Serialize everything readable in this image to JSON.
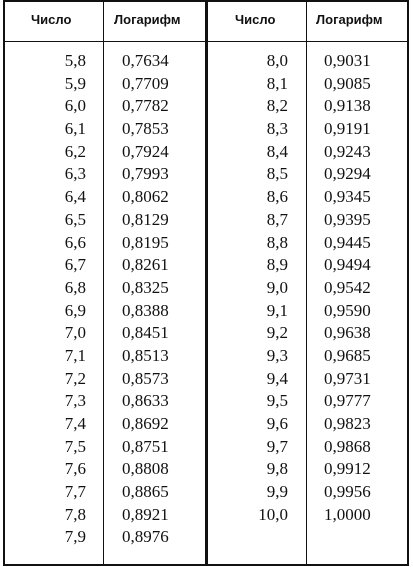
{
  "headers": {
    "number_left": "Число",
    "log_left": "Логарифм",
    "number_right": "Число",
    "log_right": "Логарифм"
  },
  "left_numbers": [
    "5,8",
    "5,9",
    "6,0",
    "6,1",
    "6,2",
    "6,3",
    "6,4",
    "6,5",
    "6,6",
    "6,7",
    "6,8",
    "6,9",
    "7,0",
    "7,1",
    "7,2",
    "7,3",
    "7,4",
    "7,5",
    "7,6",
    "7,7",
    "7,8",
    "7,9"
  ],
  "left_logs": [
    "0,7634",
    "0,7709",
    "0,7782",
    "0,7853",
    "0,7924",
    "0,7993",
    "0,8062",
    "0,8129",
    "0,8195",
    "0,8261",
    "0,8325",
    "0,8388",
    "0,8451",
    "0,8513",
    "0,8573",
    "0,8633",
    "0,8692",
    "0,8751",
    "0,8808",
    "0,8865",
    "0,8921",
    "0,8976"
  ],
  "right_numbers": [
    "8,0",
    "8,1",
    "8,2",
    "8,3",
    "8,4",
    "8,5",
    "8,6",
    "8,7",
    "8,8",
    "8,9",
    "9,0",
    "9,1",
    "9,2",
    "9,3",
    "9,4",
    "9,5",
    "9,6",
    "9,7",
    "9,8",
    "9,9",
    "10,0"
  ],
  "right_logs": [
    "0,9031",
    "0,9085",
    "0,9138",
    "0,9191",
    "0,9243",
    "0,9294",
    "0,9345",
    "0,9395",
    "0,9445",
    "0,9494",
    "0,9542",
    "0,9590",
    "0,9638",
    "0,9685",
    "0,9731",
    "0,9777",
    "0,9823",
    "0,9868",
    "0,9912",
    "0,9956",
    "1,0000"
  ]
}
